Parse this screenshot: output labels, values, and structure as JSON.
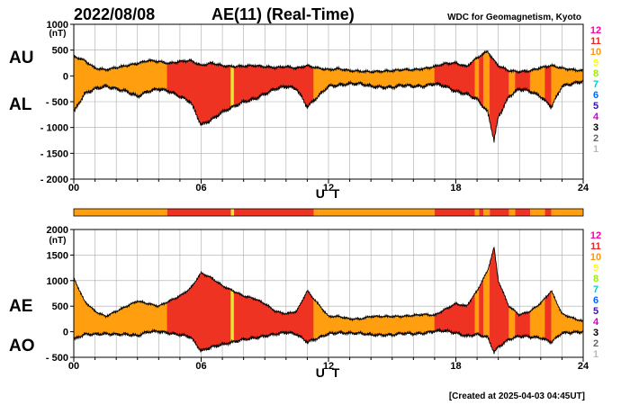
{
  "header": {
    "date": "2022/08/08",
    "title": "AE(11) (Real-Time)",
    "source": "WDC for Geomagnetism, Kyoto"
  },
  "footer": {
    "created": "[Created at 2025-04-03 04:45UT]"
  },
  "colors": {
    "level_11": "#ee3322",
    "level_10": "#ff9f10",
    "level_9": "#e6e633",
    "outline": "#000000",
    "grid": "#aaaaaa"
  },
  "station_scale": {
    "labels": [
      "12",
      "11",
      "10",
      "9",
      "8",
      "7",
      "6",
      "5",
      "4",
      "3",
      "2",
      "1"
    ],
    "colors": [
      "#ff00aa",
      "#ee2222",
      "#ff9900",
      "#ffff00",
      "#99ee00",
      "#00cccc",
      "#0066ff",
      "#3311bb",
      "#cc00cc",
      "#000000",
      "#666666",
      "#bbbbbb"
    ]
  },
  "chart_data": [
    {
      "type": "area",
      "panel": "top",
      "left_labels": [
        "AU",
        "AL"
      ],
      "ylabel": "(nT)",
      "xlabel": "U T",
      "xlim": [
        0,
        24
      ],
      "ylim": [
        -2000,
        1000
      ],
      "xticks": [
        {
          "v": 0,
          "label": "00"
        },
        {
          "v": 6,
          "label": "06"
        },
        {
          "v": 12,
          "label": "12"
        },
        {
          "v": 18,
          "label": "18"
        },
        {
          "v": 24,
          "label": "24"
        }
      ],
      "yticks": [
        {
          "v": 1000,
          "label": "1000"
        },
        {
          "v": 500,
          "label": "500"
        },
        {
          "v": 0,
          "label": "0"
        },
        {
          "v": -500,
          "label": "- 500"
        },
        {
          "v": -1000,
          "label": "- 1000"
        },
        {
          "v": -1500,
          "label": "- 1500"
        },
        {
          "v": -2000,
          "label": "- 2000"
        }
      ],
      "upper_series": {
        "name": "AU",
        "points": [
          [
            0,
            380
          ],
          [
            0.5,
            300
          ],
          [
            1,
            150
          ],
          [
            1.5,
            120
          ],
          [
            2,
            160
          ],
          [
            2.5,
            200
          ],
          [
            3,
            240
          ],
          [
            3.5,
            300
          ],
          [
            4,
            280
          ],
          [
            4.5,
            240
          ],
          [
            5,
            280
          ],
          [
            5.5,
            300
          ],
          [
            6,
            200
          ],
          [
            6.5,
            250
          ],
          [
            7,
            200
          ],
          [
            7.5,
            180
          ],
          [
            8,
            190
          ],
          [
            8.5,
            200
          ],
          [
            9,
            180
          ],
          [
            9.5,
            160
          ],
          [
            10,
            180
          ],
          [
            10.5,
            150
          ],
          [
            11,
            200
          ],
          [
            11.5,
            150
          ],
          [
            12,
            120
          ],
          [
            12.5,
            140
          ],
          [
            13,
            100
          ],
          [
            13.5,
            90
          ],
          [
            14,
            80
          ],
          [
            14.5,
            90
          ],
          [
            15,
            100
          ],
          [
            15.5,
            120
          ],
          [
            16,
            120
          ],
          [
            16.5,
            140
          ],
          [
            17,
            180
          ],
          [
            17.5,
            240
          ],
          [
            18,
            250
          ],
          [
            18.5,
            180
          ],
          [
            19,
            350
          ],
          [
            19.5,
            480
          ],
          [
            19.7,
            350
          ],
          [
            20,
            200
          ],
          [
            20.5,
            100
          ],
          [
            21,
            80
          ],
          [
            21.5,
            100
          ],
          [
            22,
            160
          ],
          [
            22.5,
            200
          ],
          [
            23,
            150
          ],
          [
            23.5,
            120
          ],
          [
            24,
            100
          ]
        ]
      },
      "lower_series": {
        "name": "AL",
        "points": [
          [
            0,
            -700
          ],
          [
            0.5,
            -350
          ],
          [
            1,
            -250
          ],
          [
            1.5,
            -200
          ],
          [
            2,
            -250
          ],
          [
            2.5,
            -300
          ],
          [
            3,
            -400
          ],
          [
            3.5,
            -300
          ],
          [
            4,
            -250
          ],
          [
            4.5,
            -300
          ],
          [
            5,
            -400
          ],
          [
            5.5,
            -500
          ],
          [
            6,
            -950
          ],
          [
            6.5,
            -850
          ],
          [
            7,
            -700
          ],
          [
            7.5,
            -600
          ],
          [
            8,
            -500
          ],
          [
            8.5,
            -450
          ],
          [
            9,
            -350
          ],
          [
            9.5,
            -250
          ],
          [
            10,
            -200
          ],
          [
            10.5,
            -250
          ],
          [
            11,
            -600
          ],
          [
            11.5,
            -400
          ],
          [
            12,
            -200
          ],
          [
            12.5,
            -180
          ],
          [
            13,
            -150
          ],
          [
            13.5,
            -150
          ],
          [
            14,
            -200
          ],
          [
            14.5,
            -220
          ],
          [
            15,
            -220
          ],
          [
            15.5,
            -180
          ],
          [
            16,
            -200
          ],
          [
            16.5,
            -200
          ],
          [
            17,
            -150
          ],
          [
            17.5,
            -200
          ],
          [
            18,
            -300
          ],
          [
            18.5,
            -350
          ],
          [
            19,
            -450
          ],
          [
            19.5,
            -700
          ],
          [
            19.8,
            -1250
          ],
          [
            20,
            -800
          ],
          [
            20.5,
            -400
          ],
          [
            21,
            -250
          ],
          [
            21.5,
            -300
          ],
          [
            22,
            -400
          ],
          [
            22.5,
            -600
          ],
          [
            23,
            -200
          ],
          [
            23.5,
            -150
          ],
          [
            24,
            -100
          ]
        ]
      },
      "segments": [
        [
          0,
          4.4,
          10
        ],
        [
          4.4,
          7.4,
          11
        ],
        [
          7.4,
          7.55,
          9
        ],
        [
          7.55,
          11.3,
          11
        ],
        [
          11.3,
          11.55,
          10
        ],
        [
          11.55,
          17.0,
          10
        ],
        [
          17.0,
          18.9,
          11
        ],
        [
          18.9,
          19.1,
          10
        ],
        [
          19.1,
          19.3,
          11
        ],
        [
          19.3,
          19.6,
          10
        ],
        [
          19.6,
          20.5,
          11
        ],
        [
          20.5,
          20.8,
          10
        ],
        [
          20.8,
          21.5,
          11
        ],
        [
          21.5,
          22.2,
          10
        ],
        [
          22.2,
          22.5,
          11
        ],
        [
          22.5,
          24,
          10
        ]
      ]
    },
    {
      "type": "area",
      "panel": "bottom",
      "left_labels": [
        "AE",
        "AO"
      ],
      "ylabel": "(nT)",
      "xlabel": "U T",
      "xlim": [
        0,
        24
      ],
      "ylim": [
        -500,
        2000
      ],
      "xticks": [
        {
          "v": 0,
          "label": "00"
        },
        {
          "v": 6,
          "label": "06"
        },
        {
          "v": 12,
          "label": "12"
        },
        {
          "v": 18,
          "label": "18"
        },
        {
          "v": 24,
          "label": "24"
        }
      ],
      "yticks": [
        {
          "v": 2000,
          "label": "2000"
        },
        {
          "v": 1500,
          "label": "1500"
        },
        {
          "v": 1000,
          "label": "1000"
        },
        {
          "v": 500,
          "label": "500"
        },
        {
          "v": 0,
          "label": "0"
        },
        {
          "v": -500,
          "label": "- 500"
        }
      ],
      "upper_series": {
        "name": "AE",
        "points": [
          [
            0,
            1050
          ],
          [
            0.5,
            600
          ],
          [
            1,
            400
          ],
          [
            1.5,
            300
          ],
          [
            2,
            400
          ],
          [
            2.5,
            500
          ],
          [
            3,
            600
          ],
          [
            3.5,
            550
          ],
          [
            4,
            500
          ],
          [
            4.5,
            600
          ],
          [
            5,
            700
          ],
          [
            5.5,
            850
          ],
          [
            6,
            1150
          ],
          [
            6.5,
            1050
          ],
          [
            7,
            900
          ],
          [
            7.5,
            800
          ],
          [
            8,
            700
          ],
          [
            8.5,
            650
          ],
          [
            9,
            550
          ],
          [
            9.5,
            400
          ],
          [
            10,
            350
          ],
          [
            10.5,
            400
          ],
          [
            11,
            800
          ],
          [
            11.5,
            550
          ],
          [
            12,
            300
          ],
          [
            12.5,
            300
          ],
          [
            13,
            250
          ],
          [
            13.5,
            250
          ],
          [
            14,
            300
          ],
          [
            14.5,
            300
          ],
          [
            15,
            300
          ],
          [
            15.5,
            300
          ],
          [
            16,
            320
          ],
          [
            16.5,
            340
          ],
          [
            17,
            320
          ],
          [
            17.5,
            440
          ],
          [
            18,
            550
          ],
          [
            18.5,
            500
          ],
          [
            19,
            800
          ],
          [
            19.5,
            1200
          ],
          [
            19.8,
            1650
          ],
          [
            20,
            1000
          ],
          [
            20.5,
            500
          ],
          [
            21,
            330
          ],
          [
            21.5,
            400
          ],
          [
            22,
            560
          ],
          [
            22.5,
            800
          ],
          [
            23,
            350
          ],
          [
            23.5,
            270
          ],
          [
            24,
            200
          ]
        ]
      },
      "lower_series": {
        "name": "AO",
        "points": [
          [
            0,
            -150
          ],
          [
            0.5,
            -50
          ],
          [
            1,
            -50
          ],
          [
            1.5,
            -40
          ],
          [
            2,
            -50
          ],
          [
            2.5,
            -50
          ],
          [
            3,
            -80
          ],
          [
            3.5,
            0
          ],
          [
            4,
            10
          ],
          [
            4.5,
            -30
          ],
          [
            5,
            -60
          ],
          [
            5.5,
            -100
          ],
          [
            6,
            -375
          ],
          [
            6.5,
            -300
          ],
          [
            7,
            -250
          ],
          [
            7.5,
            -200
          ],
          [
            8,
            -150
          ],
          [
            8.5,
            -125
          ],
          [
            9,
            -85
          ],
          [
            9.5,
            -45
          ],
          [
            10,
            -10
          ],
          [
            10.5,
            -50
          ],
          [
            11,
            -200
          ],
          [
            11.5,
            -125
          ],
          [
            12,
            -40
          ],
          [
            12.5,
            -20
          ],
          [
            13,
            -25
          ],
          [
            13.5,
            -30
          ],
          [
            14,
            -60
          ],
          [
            14.5,
            -65
          ],
          [
            15,
            -60
          ],
          [
            15.5,
            -30
          ],
          [
            16,
            -40
          ],
          [
            16.5,
            -30
          ],
          [
            17,
            15
          ],
          [
            17.5,
            20
          ],
          [
            18,
            -25
          ],
          [
            18.5,
            -85
          ],
          [
            19,
            -50
          ],
          [
            19.5,
            -110
          ],
          [
            19.8,
            -400
          ],
          [
            20,
            -300
          ],
          [
            20.5,
            -150
          ],
          [
            21,
            -85
          ],
          [
            21.5,
            -100
          ],
          [
            22,
            -120
          ],
          [
            22.5,
            -200
          ],
          [
            23,
            -25
          ],
          [
            23.5,
            -15
          ],
          [
            24,
            0
          ]
        ]
      },
      "segments": [
        [
          0,
          4.4,
          10
        ],
        [
          4.4,
          7.4,
          11
        ],
        [
          7.4,
          7.55,
          9
        ],
        [
          7.55,
          11.3,
          11
        ],
        [
          11.3,
          11.55,
          10
        ],
        [
          11.55,
          17.0,
          10
        ],
        [
          17.0,
          18.9,
          11
        ],
        [
          18.9,
          19.1,
          10
        ],
        [
          19.1,
          19.3,
          11
        ],
        [
          19.3,
          19.6,
          10
        ],
        [
          19.6,
          20.5,
          11
        ],
        [
          20.5,
          20.8,
          10
        ],
        [
          20.8,
          21.5,
          11
        ],
        [
          21.5,
          22.2,
          10
        ],
        [
          22.2,
          22.5,
          11
        ],
        [
          22.5,
          24,
          10
        ]
      ]
    }
  ]
}
